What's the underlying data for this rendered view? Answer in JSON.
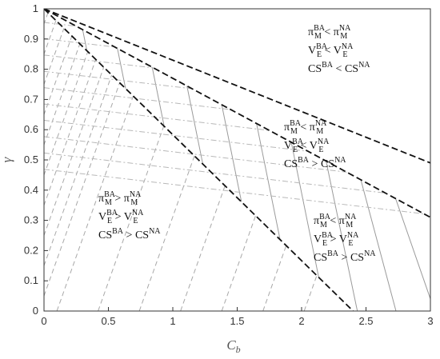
{
  "chart_data": {
    "type": "line",
    "title": "",
    "xlabel_main": "C",
    "xlabel_sub": "b",
    "ylabel": "γ",
    "xlim": [
      0,
      3
    ],
    "ylim": [
      0,
      1
    ],
    "x_ticks": [
      "0",
      "0.5",
      "1",
      "1.5",
      "2",
      "2.5",
      "3"
    ],
    "y_ticks": [
      "0",
      "0.1",
      "0.2",
      "0.3",
      "0.4",
      "0.5",
      "0.6",
      "0.7",
      "0.8",
      "0.9",
      "1"
    ],
    "grid": false,
    "boundaries": [
      {
        "style": "dashed-black",
        "points": [
          [
            0,
            1
          ],
          [
            3,
            0.49
          ]
        ]
      },
      {
        "style": "dashed-black",
        "points": [
          [
            0,
            1
          ],
          [
            3,
            0.31
          ]
        ]
      },
      {
        "style": "dashed-black",
        "points": [
          [
            0,
            1
          ],
          [
            2.4,
            0
          ]
        ]
      }
    ],
    "regions": [
      {
        "name": "upper",
        "lines": [
          {
            "a": "π",
            "sub": "M",
            "sup": "BA",
            "op": "<",
            "b": "π",
            "bsub": "M",
            "bsup": "NA"
          },
          {
            "a": "V",
            "sub": "E",
            "sup": "BA",
            "op": "<",
            "b": "V",
            "bsub": "E",
            "bsup": "NA"
          },
          {
            "a": "CS",
            "sub": "",
            "sup": "BA",
            "op": "<",
            "b": "CS",
            "bsub": "",
            "bsup": "NA"
          }
        ]
      },
      {
        "name": "middle",
        "lines": [
          {
            "a": "π",
            "sub": "M",
            "sup": "BA",
            "op": "<",
            "b": "π",
            "bsub": "M",
            "bsup": "NA"
          },
          {
            "a": "V",
            "sub": "E",
            "sup": "BA",
            "op": "<",
            "b": "V",
            "bsub": "E",
            "bsup": "NA"
          },
          {
            "a": "CS",
            "sub": "",
            "sup": "BA",
            "op": ">",
            "b": "CS",
            "bsub": "",
            "bsup": "NA"
          }
        ]
      },
      {
        "name": "left",
        "lines": [
          {
            "a": "π",
            "sub": "M",
            "sup": "BA",
            "op": ">",
            "b": "π",
            "bsub": "M",
            "bsup": "NA"
          },
          {
            "a": "V",
            "sub": "E",
            "sup": "BA",
            "op": ">",
            "b": "V",
            "bsub": "E",
            "bsup": "NA"
          },
          {
            "a": "CS",
            "sub": "",
            "sup": "BA",
            "op": ">",
            "b": "CS",
            "bsub": "",
            "bsup": "NA"
          }
        ]
      },
      {
        "name": "lower-right",
        "lines": [
          {
            "a": "π",
            "sub": "M",
            "sup": "BA",
            "op": "<",
            "b": "π",
            "bsub": "M",
            "bsup": "NA"
          },
          {
            "a": "V",
            "sub": "E",
            "sup": "BA",
            "op": ">",
            "b": "V",
            "bsub": "E",
            "bsup": "NA"
          },
          {
            "a": "CS",
            "sub": "",
            "sup": "BA",
            "op": ">",
            "b": "CS",
            "bsub": "",
            "bsup": "NA"
          }
        ]
      }
    ],
    "colors": {
      "boundary": "#111111",
      "hatch": "#a8a8a8",
      "solid_hatch": "#9a9a9a",
      "dashdot_hatch": "#b8b8b8",
      "axis": "#333333"
    }
  }
}
